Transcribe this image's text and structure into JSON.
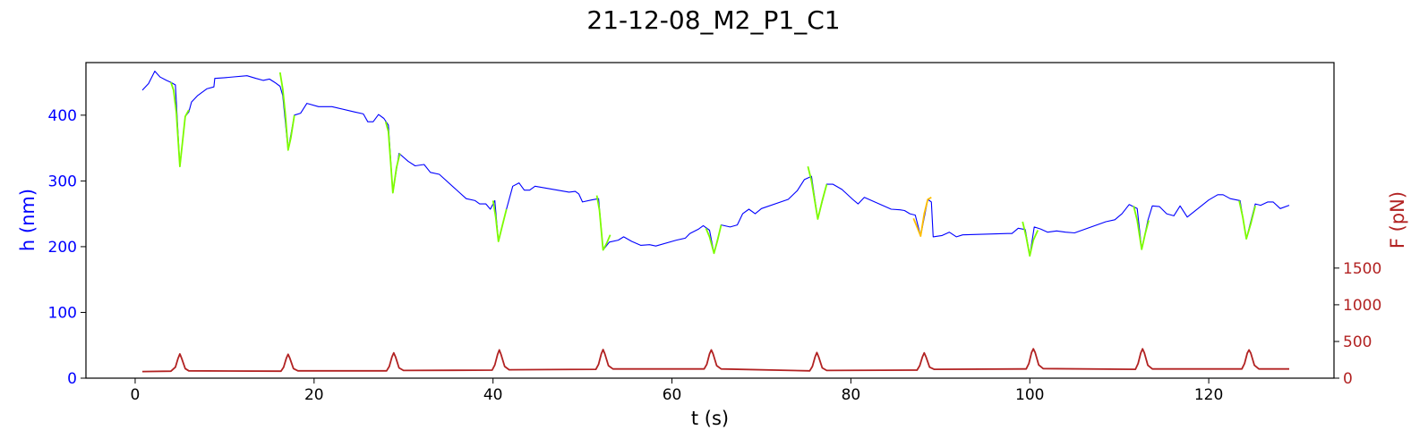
{
  "chart_data": {
    "type": "line",
    "title": "21-12-08_M2_P1_C1",
    "xlabel": "t (s)",
    "ylabel_left": "h (nm)",
    "ylabel_right": "F (pN)",
    "xlim": [
      -5.5,
      134
    ],
    "ylim_left": [
      0,
      480
    ],
    "ylim_right": [
      0,
      4300
    ],
    "x_ticks": [
      0,
      20,
      40,
      60,
      80,
      100,
      120
    ],
    "y_ticks_left": [
      0,
      100,
      200,
      300,
      400
    ],
    "y_ticks_right": [
      0,
      500,
      1000,
      1500
    ],
    "grid": false,
    "colors": {
      "height": "#0000ff",
      "segment_green": "#7cfc00",
      "segment_orange": "#ffbf00",
      "force": "#b22222",
      "left_axis": "#0000ff",
      "right_axis": "#b22222",
      "frame": "#000000"
    },
    "series": [
      {
        "axis": "left",
        "color_key": "height",
        "points": [
          [
            0.8,
            438
          ],
          [
            1.5,
            448
          ],
          [
            2.2,
            467
          ],
          [
            2.8,
            458
          ],
          [
            3.5,
            453
          ],
          [
            4.0,
            450
          ],
          [
            4.5,
            446
          ],
          [
            5.0,
            322
          ],
          [
            5.6,
            398
          ],
          [
            6.0,
            405
          ],
          [
            6.3,
            420
          ],
          [
            7.0,
            430
          ],
          [
            8.0,
            440
          ],
          [
            8.8,
            443
          ],
          [
            8.9,
            456
          ],
          [
            10.0,
            457
          ],
          [
            12.5,
            460
          ],
          [
            13.5,
            456
          ],
          [
            14.3,
            453
          ],
          [
            15.0,
            455
          ],
          [
            15.6,
            450
          ],
          [
            16.2,
            444
          ],
          [
            16.5,
            430
          ],
          [
            17.1,
            347
          ],
          [
            17.8,
            400
          ],
          [
            18.5,
            403
          ],
          [
            19.2,
            418
          ],
          [
            20.5,
            413
          ],
          [
            22.0,
            413
          ],
          [
            24.5,
            405
          ],
          [
            25.5,
            402
          ],
          [
            26.0,
            390
          ],
          [
            26.6,
            390
          ],
          [
            27.2,
            401
          ],
          [
            27.8,
            395
          ],
          [
            28.3,
            385
          ],
          [
            28.8,
            282
          ],
          [
            29.5,
            342
          ],
          [
            30.5,
            330
          ],
          [
            31.3,
            323
          ],
          [
            32.3,
            325
          ],
          [
            33.0,
            313
          ],
          [
            34.0,
            310
          ],
          [
            37.0,
            273
          ],
          [
            38.0,
            270
          ],
          [
            38.5,
            265
          ],
          [
            39.2,
            265
          ],
          [
            39.7,
            257
          ],
          [
            40.2,
            270
          ],
          [
            40.6,
            208
          ],
          [
            41.5,
            257
          ],
          [
            42.2,
            292
          ],
          [
            42.9,
            297
          ],
          [
            43.5,
            286
          ],
          [
            44.1,
            286
          ],
          [
            44.7,
            292
          ],
          [
            48.5,
            283
          ],
          [
            49.2,
            284
          ],
          [
            49.6,
            280
          ],
          [
            50.0,
            268
          ],
          [
            51.0,
            271
          ],
          [
            51.8,
            273
          ],
          [
            52.3,
            195
          ],
          [
            53.0,
            207
          ],
          [
            54.0,
            210
          ],
          [
            54.6,
            215
          ],
          [
            55.5,
            208
          ],
          [
            56.5,
            202
          ],
          [
            57.5,
            203
          ],
          [
            58.2,
            201
          ],
          [
            60.5,
            210
          ],
          [
            61.5,
            213
          ],
          [
            62.0,
            220
          ],
          [
            63.0,
            227
          ],
          [
            63.5,
            232
          ],
          [
            64.2,
            225
          ],
          [
            64.7,
            190
          ],
          [
            65.5,
            233
          ],
          [
            66.5,
            230
          ],
          [
            67.3,
            233
          ],
          [
            67.9,
            250
          ],
          [
            68.6,
            257
          ],
          [
            69.3,
            250
          ],
          [
            70.0,
            258
          ],
          [
            73.0,
            272
          ],
          [
            74.0,
            285
          ],
          [
            74.8,
            302
          ],
          [
            75.6,
            307
          ],
          [
            76.3,
            242
          ],
          [
            77.3,
            295
          ],
          [
            78.0,
            295
          ],
          [
            79.0,
            287
          ],
          [
            80.2,
            272
          ],
          [
            80.8,
            265
          ],
          [
            81.5,
            275
          ],
          [
            84.5,
            257
          ],
          [
            85.5,
            256
          ],
          [
            86.0,
            255
          ],
          [
            86.6,
            250
          ],
          [
            87.2,
            248
          ],
          [
            87.8,
            216
          ],
          [
            88.6,
            272
          ],
          [
            89.0,
            268
          ],
          [
            89.2,
            215
          ],
          [
            90.2,
            217
          ],
          [
            91.0,
            222
          ],
          [
            91.8,
            215
          ],
          [
            92.5,
            218
          ],
          [
            97.5,
            220
          ],
          [
            98.0,
            220
          ],
          [
            98.7,
            228
          ],
          [
            99.5,
            226
          ],
          [
            100.0,
            186
          ],
          [
            100.5,
            230
          ],
          [
            101.2,
            227
          ],
          [
            102.0,
            222
          ],
          [
            103.0,
            224
          ],
          [
            104.0,
            222
          ],
          [
            105.0,
            221
          ],
          [
            108.5,
            238
          ],
          [
            109.5,
            241
          ],
          [
            110.3,
            250
          ],
          [
            111.1,
            264
          ],
          [
            112.0,
            258
          ],
          [
            112.5,
            196
          ],
          [
            113.2,
            240
          ],
          [
            113.7,
            262
          ],
          [
            114.5,
            261
          ],
          [
            115.3,
            250
          ],
          [
            116.1,
            247
          ],
          [
            116.8,
            262
          ],
          [
            117.6,
            245
          ],
          [
            120.0,
            271
          ],
          [
            121.0,
            279
          ],
          [
            121.6,
            279
          ],
          [
            122.4,
            273
          ],
          [
            123.5,
            270
          ],
          [
            124.2,
            212
          ],
          [
            125.2,
            265
          ],
          [
            125.8,
            263
          ],
          [
            126.6,
            268
          ],
          [
            127.2,
            268
          ],
          [
            128.0,
            258
          ],
          [
            129.0,
            263
          ]
        ]
      },
      {
        "axis": "left",
        "color_key": "segment_green",
        "points": [
          [
            4.0,
            450
          ],
          [
            4.3,
            438
          ],
          [
            4.6,
            405
          ],
          [
            5.0,
            322
          ],
          [
            5.3,
            360
          ],
          [
            5.6,
            398
          ],
          [
            6.0,
            408
          ]
        ]
      },
      {
        "axis": "left",
        "color_key": "segment_green",
        "points": [
          [
            16.2,
            465
          ],
          [
            16.5,
            440
          ],
          [
            16.8,
            400
          ],
          [
            17.1,
            347
          ],
          [
            17.4,
            365
          ],
          [
            17.8,
            400
          ]
        ]
      },
      {
        "axis": "left",
        "color_key": "segment_green",
        "points": [
          [
            28.0,
            390
          ],
          [
            28.3,
            375
          ],
          [
            28.6,
            320
          ],
          [
            28.8,
            282
          ],
          [
            29.2,
            320
          ],
          [
            29.6,
            342
          ]
        ]
      },
      {
        "axis": "left",
        "color_key": "segment_green",
        "points": [
          [
            40.0,
            270
          ],
          [
            40.3,
            245
          ],
          [
            40.6,
            208
          ],
          [
            41.0,
            230
          ],
          [
            41.5,
            257
          ]
        ]
      },
      {
        "axis": "left",
        "color_key": "segment_green",
        "points": [
          [
            51.6,
            278
          ],
          [
            51.9,
            255
          ],
          [
            52.3,
            195
          ],
          [
            52.7,
            205
          ],
          [
            53.1,
            218
          ]
        ]
      },
      {
        "axis": "left",
        "color_key": "segment_green",
        "points": [
          [
            63.8,
            228
          ],
          [
            64.2,
            215
          ],
          [
            64.7,
            190
          ],
          [
            65.1,
            210
          ],
          [
            65.5,
            233
          ]
        ]
      },
      {
        "axis": "left",
        "color_key": "segment_green",
        "points": [
          [
            75.2,
            322
          ],
          [
            75.6,
            300
          ],
          [
            76.3,
            242
          ],
          [
            76.8,
            270
          ],
          [
            77.3,
            295
          ]
        ]
      },
      {
        "axis": "left",
        "color_key": "segment_orange",
        "points": [
          [
            87.0,
            243
          ],
          [
            87.4,
            230
          ],
          [
            87.8,
            216
          ],
          [
            88.2,
            250
          ],
          [
            88.6,
            272
          ],
          [
            89.0,
            275
          ]
        ]
      },
      {
        "axis": "left",
        "color_key": "segment_green",
        "points": [
          [
            99.2,
            238
          ],
          [
            99.6,
            215
          ],
          [
            100.0,
            186
          ],
          [
            100.4,
            210
          ],
          [
            100.9,
            225
          ]
        ]
      },
      {
        "axis": "left",
        "color_key": "segment_green",
        "points": [
          [
            111.6,
            262
          ],
          [
            112.0,
            240
          ],
          [
            112.5,
            196
          ],
          [
            112.9,
            220
          ],
          [
            113.3,
            240
          ]
        ]
      },
      {
        "axis": "left",
        "color_key": "segment_green",
        "points": [
          [
            123.4,
            270
          ],
          [
            123.8,
            245
          ],
          [
            124.2,
            212
          ],
          [
            124.7,
            235
          ],
          [
            125.2,
            262
          ]
        ]
      },
      {
        "axis": "right",
        "color_key": "force",
        "points": [
          [
            0.8,
            90
          ],
          [
            4.0,
            95
          ],
          [
            4.5,
            150
          ],
          [
            4.8,
            270
          ],
          [
            5.0,
            330
          ],
          [
            5.2,
            270
          ],
          [
            5.6,
            130
          ],
          [
            6.0,
            100
          ],
          [
            16.3,
            95
          ],
          [
            16.6,
            150
          ],
          [
            16.9,
            270
          ],
          [
            17.1,
            325
          ],
          [
            17.3,
            270
          ],
          [
            17.7,
            130
          ],
          [
            18.2,
            100
          ],
          [
            28.1,
            100
          ],
          [
            28.4,
            160
          ],
          [
            28.7,
            290
          ],
          [
            28.9,
            345
          ],
          [
            29.1,
            290
          ],
          [
            29.5,
            140
          ],
          [
            30.0,
            105
          ],
          [
            39.9,
            110
          ],
          [
            40.2,
            180
          ],
          [
            40.5,
            320
          ],
          [
            40.7,
            385
          ],
          [
            40.9,
            320
          ],
          [
            41.3,
            160
          ],
          [
            41.8,
            115
          ],
          [
            51.5,
            120
          ],
          [
            51.8,
            190
          ],
          [
            52.1,
            330
          ],
          [
            52.3,
            390
          ],
          [
            52.5,
            330
          ],
          [
            52.9,
            170
          ],
          [
            53.4,
            125
          ],
          [
            63.6,
            125
          ],
          [
            63.9,
            190
          ],
          [
            64.2,
            330
          ],
          [
            64.4,
            385
          ],
          [
            64.6,
            330
          ],
          [
            65.0,
            170
          ],
          [
            65.5,
            125
          ],
          [
            75.4,
            100
          ],
          [
            75.7,
            160
          ],
          [
            76.0,
            290
          ],
          [
            76.2,
            350
          ],
          [
            76.4,
            290
          ],
          [
            76.8,
            140
          ],
          [
            77.3,
            105
          ],
          [
            87.4,
            110
          ],
          [
            87.7,
            170
          ],
          [
            88.0,
            290
          ],
          [
            88.2,
            345
          ],
          [
            88.4,
            290
          ],
          [
            88.8,
            150
          ],
          [
            89.3,
            120
          ],
          [
            99.6,
            125
          ],
          [
            99.9,
            200
          ],
          [
            100.2,
            350
          ],
          [
            100.4,
            400
          ],
          [
            100.6,
            350
          ],
          [
            101.0,
            180
          ],
          [
            101.5,
            130
          ],
          [
            111.8,
            120
          ],
          [
            112.1,
            200
          ],
          [
            112.4,
            345
          ],
          [
            112.6,
            400
          ],
          [
            112.8,
            345
          ],
          [
            113.2,
            175
          ],
          [
            113.7,
            125
          ],
          [
            123.7,
            125
          ],
          [
            124.0,
            200
          ],
          [
            124.3,
            340
          ],
          [
            124.5,
            385
          ],
          [
            124.7,
            340
          ],
          [
            125.1,
            175
          ],
          [
            125.6,
            125
          ],
          [
            129.0,
            125
          ]
        ]
      }
    ]
  }
}
